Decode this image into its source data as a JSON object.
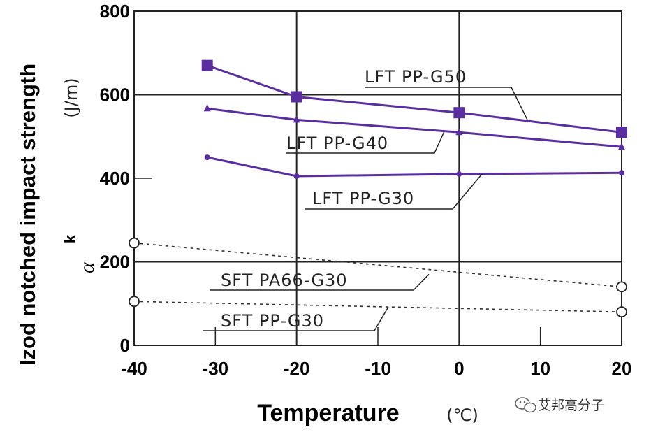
{
  "chart_data": {
    "type": "line",
    "title": "",
    "xlabel": "Temperature",
    "xunit": "(℃)",
    "ylabel": "Izod notched impact strength",
    "yunit": "(J/m)",
    "ysymbol": "α",
    "ysymbol_sub": "k",
    "xlim": [
      -40,
      20
    ],
    "ylim": [
      0,
      800
    ],
    "xticks": [
      -40,
      -30,
      -20,
      -10,
      0,
      10,
      20
    ],
    "yticks": [
      0,
      200,
      400,
      600,
      800
    ],
    "grid": true,
    "series": [
      {
        "name": "LFT PP-G50",
        "style": "solid",
        "marker": "square",
        "x": [
          -31,
          -20,
          0,
          20
        ],
        "y": [
          670,
          595,
          557,
          510
        ]
      },
      {
        "name": "LFT PP-G40",
        "style": "solid",
        "marker": "triangle",
        "x": [
          -31,
          -20,
          0,
          20
        ],
        "y": [
          567,
          540,
          510,
          475
        ]
      },
      {
        "name": "LFT PP-G30",
        "style": "solid",
        "marker": "dot",
        "x": [
          -31,
          -20,
          0,
          20
        ],
        "y": [
          450,
          405,
          410,
          413
        ]
      },
      {
        "name": "SFT PA66-G30",
        "style": "dashed",
        "marker": "open-circle",
        "x": [
          -40,
          20
        ],
        "y": [
          245,
          140
        ]
      },
      {
        "name": "SFT PP-G30",
        "style": "dashed",
        "marker": "open-circle",
        "x": [
          -40,
          20
        ],
        "y": [
          105,
          80
        ]
      }
    ]
  },
  "colors": {
    "lft": "#5a2ea0",
    "sft": "#333333",
    "grid": "#222222"
  },
  "watermark": {
    "icon": "wechat-icon",
    "text": "艾邦高分子"
  }
}
